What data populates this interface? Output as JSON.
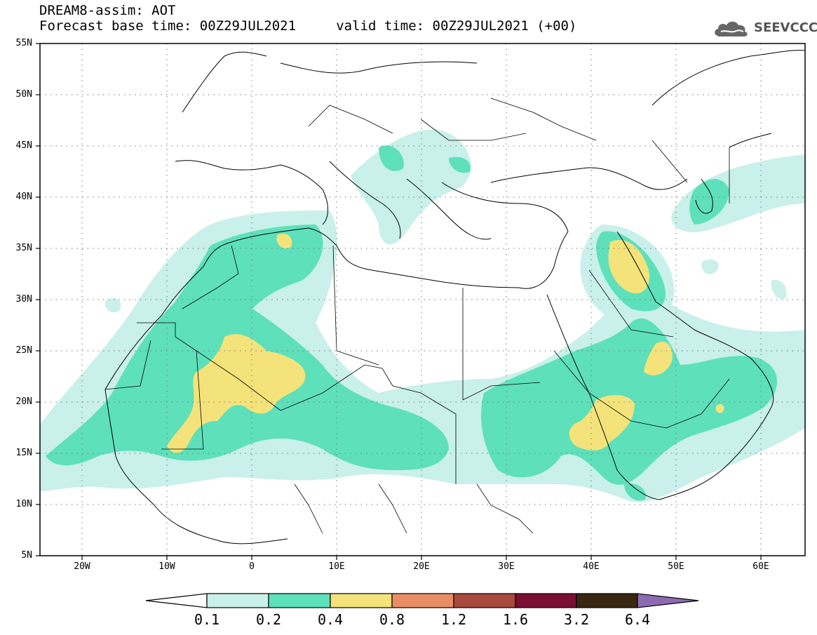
{
  "header": {
    "title_line1": "DREAM8-assim: AOT",
    "title_line2": "Forecast base time: 00Z29JUL2021     valid time: 00Z29JUL2021 (+00)"
  },
  "logo": {
    "text": "SEEVCCC",
    "icon": "cloud-logo-icon",
    "color": "#555555"
  },
  "map": {
    "lat_labels": [
      "55N",
      "50N",
      "45N",
      "40N",
      "35N",
      "30N",
      "25N",
      "20N",
      "15N",
      "10N",
      "5N"
    ],
    "lon_labels": [
      "20W",
      "10W",
      "0",
      "10E",
      "20E",
      "30E",
      "40E",
      "50E",
      "60E"
    ],
    "extent": {
      "lon_min": -25,
      "lon_max": 65,
      "lat_min": 5,
      "lat_max": 55
    },
    "gridlines": "dotted"
  },
  "colorbar": {
    "levels": [
      "0.1",
      "0.2",
      "0.4",
      "0.8",
      "1.2",
      "1.6",
      "3.2",
      "6.4"
    ],
    "colors": [
      "#ffffff",
      "#c9f0ea",
      "#5ee0bb",
      "#f4e37b",
      "#e88e66",
      "#a84a3e",
      "#7a0f33",
      "#3a2712",
      "#8d6bb3"
    ]
  }
}
